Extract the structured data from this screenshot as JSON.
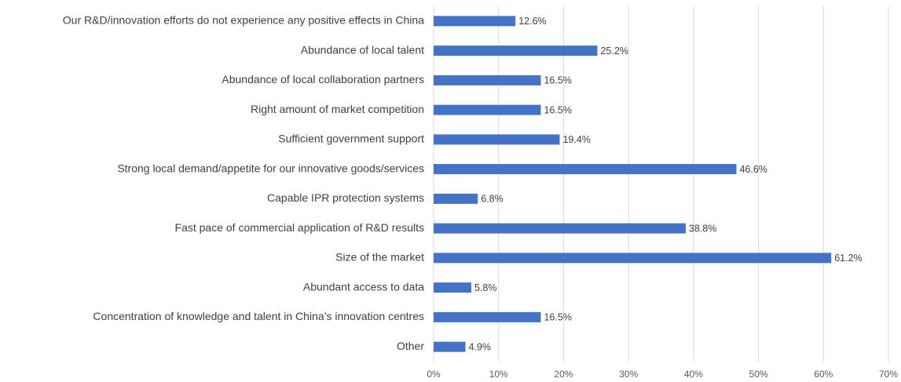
{
  "chart_data": {
    "type": "barh",
    "categories": [
      "Our R&D/innovation efforts do not experience any positive effects in China",
      "Abundance of local talent",
      "Abundance of local collaboration partners",
      "Right amount of market competition",
      "Sufficient government support",
      "Strong local demand/appetite for our innovative goods/services",
      "Capable IPR protection systems",
      "Fast pace of commercial application of R&D results",
      "Size of the market",
      "Abundant access to data",
      "Concentration of knowledge and talent in China’s innovation centres",
      "Other"
    ],
    "values": [
      12.6,
      25.2,
      16.5,
      16.5,
      19.4,
      46.6,
      6.8,
      38.8,
      61.2,
      5.8,
      16.5,
      4.9
    ],
    "value_labels": [
      "12.6%",
      "25.2%",
      "16.5%",
      "16.5%",
      "19.4%",
      "46.6%",
      "6.8%",
      "38.8%",
      "61.2%",
      "5.8%",
      "16.5%",
      "4.9%"
    ],
    "color": "#4472c4",
    "xlim": [
      0,
      70
    ],
    "xticks": [
      {
        "value": 0,
        "label": "0%"
      },
      {
        "value": 10,
        "label": "10%"
      },
      {
        "value": 20,
        "label": "20%"
      },
      {
        "value": 30,
        "label": "30%"
      },
      {
        "value": 40,
        "label": "40%"
      },
      {
        "value": 50,
        "label": "50%"
      },
      {
        "value": 60,
        "label": "60%"
      },
      {
        "value": 70,
        "label": "70%"
      }
    ],
    "grid": true
  }
}
